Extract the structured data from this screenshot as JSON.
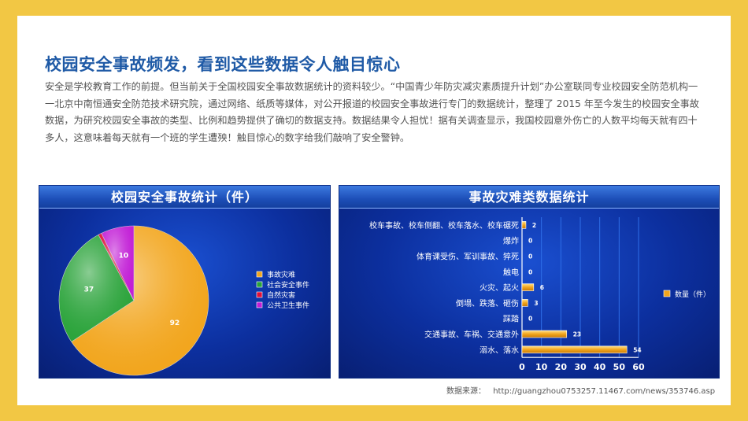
{
  "slide": {
    "title": "校园安全事故频发，看到这些数据令人触目惊心",
    "intro": "安全是学校教育工作的前提。但当前关于全国校园安全事故数据统计的资料较少。“中国青少年防灾减灾素质提升计划”办公室联同专业校园安全防范机构一一北京中南恒通安全防范技术研究院，通过网络、纸质等媒体，对公开报道的校园安全事故进行专门的数据统计，整理了 2015 年至今发生的校园安全事故数据，为研究校园安全事故的类型、比例和趋势提供了确切的数据支持。数据结果令人担忧！据有关调查显示，我国校园意外伤亡的人数平均每天就有四十多人，这意味着每天就有一个班的学生遭殃！触目惊心的数字给我们敲响了安全警钟。",
    "source_label": "数据来源：",
    "source_url": "http://guangzhou0753257.11467.com/news/353746.asp"
  },
  "chart_data": [
    {
      "type": "pie",
      "title": "校园安全事故统计（件）",
      "legend_position": "right",
      "slices": [
        {
          "label": "事故灾难",
          "value": 92,
          "color": "#f2a51c"
        },
        {
          "label": "社会安全事件",
          "value": 37,
          "color": "#2aa33a"
        },
        {
          "label": "自然灾害",
          "value": 1,
          "color": "#e0103a"
        },
        {
          "label": "公共卫生事件",
          "value": 10,
          "color": "#c21fd6"
        }
      ]
    },
    {
      "type": "bar",
      "orientation": "horizontal",
      "title": "事故灾难类数据统计",
      "legend_position": "right",
      "series": [
        {
          "name": "数量（件）",
          "color": "#f2a51c"
        }
      ],
      "categories": [
        "校车事故、校车侧翻、校车落水、校车碾死",
        "爆炸",
        "体育课受伤、军训事故、猝死",
        "触电",
        "火灾、起火",
        "倒塌、跌落、砸伤",
        "踩踏",
        "交通事故、车祸、交通意外",
        "溺水、落水"
      ],
      "values": [
        2,
        0,
        0,
        0,
        6,
        3,
        0,
        23,
        54
      ],
      "xlim": [
        0,
        60
      ],
      "xticks": [
        0,
        10,
        20,
        30,
        40,
        50,
        60
      ],
      "grid": true
    }
  ]
}
